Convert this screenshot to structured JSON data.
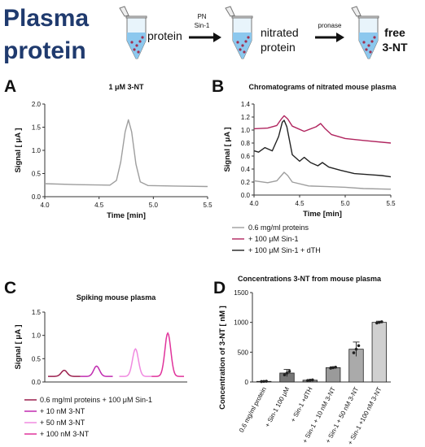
{
  "header": {
    "title_line1": "Plasma",
    "title_line2": "protein",
    "step1_label": "protein",
    "reagent1_line1": "PN",
    "reagent1_line2": "Sin-1",
    "step2_label_line1": "nitrated",
    "step2_label_line2": "protein",
    "reagent2": "pronase",
    "step3_label_line1": "free",
    "step3_label_line2": "3-NT"
  },
  "chart_data": [
    {
      "panel": "A",
      "type": "line",
      "title": "1 μM 3-NT",
      "xlabel": "Time [min]",
      "ylabel": "Signal [ μA ]",
      "xlim": [
        4.0,
        5.5
      ],
      "ylim": [
        0.0,
        2.0
      ],
      "xticks": [
        "4.0",
        "4.5",
        "5.0",
        "5.5"
      ],
      "yticks": [
        "0.0",
        "0.5",
        "1.0",
        "1.5",
        "2.0"
      ],
      "series": [
        {
          "color": "#9e9e9e",
          "x": [
            4.0,
            4.3,
            4.6,
            4.66,
            4.7,
            4.74,
            4.77,
            4.8,
            4.84,
            4.88,
            4.95,
            5.2,
            5.5
          ],
          "y": [
            0.28,
            0.26,
            0.25,
            0.35,
            0.75,
            1.4,
            1.66,
            1.4,
            0.7,
            0.32,
            0.24,
            0.23,
            0.22
          ]
        }
      ]
    },
    {
      "panel": "B",
      "type": "line",
      "title": "Chromatograms of nitrated mouse plasma",
      "xlabel": "Time [min]",
      "ylabel": "Signal [ μA ]",
      "xlim": [
        4.0,
        5.5
      ],
      "ylim": [
        0.0,
        1.4
      ],
      "xticks": [
        "4.0",
        "4.5",
        "5.0",
        "5.5"
      ],
      "yticks": [
        "0.0",
        "0.2",
        "0.4",
        "0.6",
        "0.8",
        "1.0",
        "1.2",
        "1.4"
      ],
      "legend_position": "bottom",
      "series": [
        {
          "name": "0.6 mg/ml proteins",
          "color": "#9e9e9e",
          "x": [
            4.0,
            4.15,
            4.25,
            4.3,
            4.33,
            4.37,
            4.42,
            4.6,
            4.8,
            5.0,
            5.2,
            5.5
          ],
          "y": [
            0.22,
            0.19,
            0.22,
            0.3,
            0.35,
            0.3,
            0.2,
            0.14,
            0.13,
            0.12,
            0.1,
            0.09
          ]
        },
        {
          "name": "+ 100 μM Sin-1",
          "color": "#b0245e",
          "x": [
            4.0,
            4.15,
            4.25,
            4.3,
            4.33,
            4.37,
            4.42,
            4.55,
            4.68,
            4.73,
            4.78,
            4.85,
            5.0,
            5.2,
            5.5
          ],
          "y": [
            1.02,
            1.03,
            1.07,
            1.17,
            1.22,
            1.17,
            1.06,
            0.98,
            1.05,
            1.1,
            1.02,
            0.93,
            0.87,
            0.84,
            0.8
          ]
        },
        {
          "name": "+ 100 μM Sin-1 + dTH",
          "color": "#222222",
          "x": [
            4.0,
            4.05,
            4.12,
            4.2,
            4.27,
            4.31,
            4.33,
            4.36,
            4.42,
            4.5,
            4.55,
            4.62,
            4.7,
            4.75,
            4.82,
            4.95,
            5.1,
            5.3,
            5.4,
            5.5
          ],
          "y": [
            0.68,
            0.66,
            0.73,
            0.68,
            0.9,
            1.12,
            1.15,
            1.05,
            0.62,
            0.52,
            0.58,
            0.5,
            0.45,
            0.5,
            0.43,
            0.38,
            0.33,
            0.31,
            0.3,
            0.28
          ]
        }
      ]
    },
    {
      "panel": "C",
      "type": "line",
      "title": "Spiking mouse plasma",
      "ylabel": "Signal [ μA ]",
      "ylim": [
        0.0,
        1.5
      ],
      "yticks": [
        "0.0",
        "0.5",
        "1.0",
        "1.5"
      ],
      "legend_position": "bottom",
      "series": [
        {
          "name": "0.6 mg/ml proteins + 100 μM Sin-1",
          "color": "#9b1f4d",
          "center": 0.6,
          "height": 0.25
        },
        {
          "name": "+ 10 nM 3-NT",
          "color": "#c02bb0",
          "center": 1.6,
          "height": 0.34
        },
        {
          "name": "+ 50 nM 3-NT",
          "color": "#f08ae0",
          "center": 2.8,
          "height": 0.71
        },
        {
          "name": "+ 100 nM 3-NT",
          "color": "#e0339b",
          "center": 3.8,
          "height": 1.05
        }
      ]
    },
    {
      "panel": "D",
      "type": "bar",
      "title": "Concentrations 3-NT from mouse plasma",
      "ylabel": "Concentration of 3-NT [ nM ]",
      "ylim": [
        0,
        1500
      ],
      "yticks": [
        "0",
        "500",
        "1000",
        "1500"
      ],
      "categories": [
        "0.6 mg/ml protein",
        "+ Sin-1 100 μM",
        "+ Sin-1 +dTH",
        "+ Sin-1 + 10 nM 3-NT",
        "+ Sin-1 + 50 nM 3-NT",
        "+ Sin-1 +100 nM 3-NT"
      ],
      "values": [
        10,
        150,
        30,
        240,
        550,
        1000
      ],
      "errors": [
        5,
        60,
        10,
        15,
        120,
        20
      ],
      "colors": [
        "#ffffff",
        "#777777",
        "#8a8a8a",
        "#9a9a9a",
        "#aaaaaa",
        "#d0d0d0"
      ]
    }
  ]
}
